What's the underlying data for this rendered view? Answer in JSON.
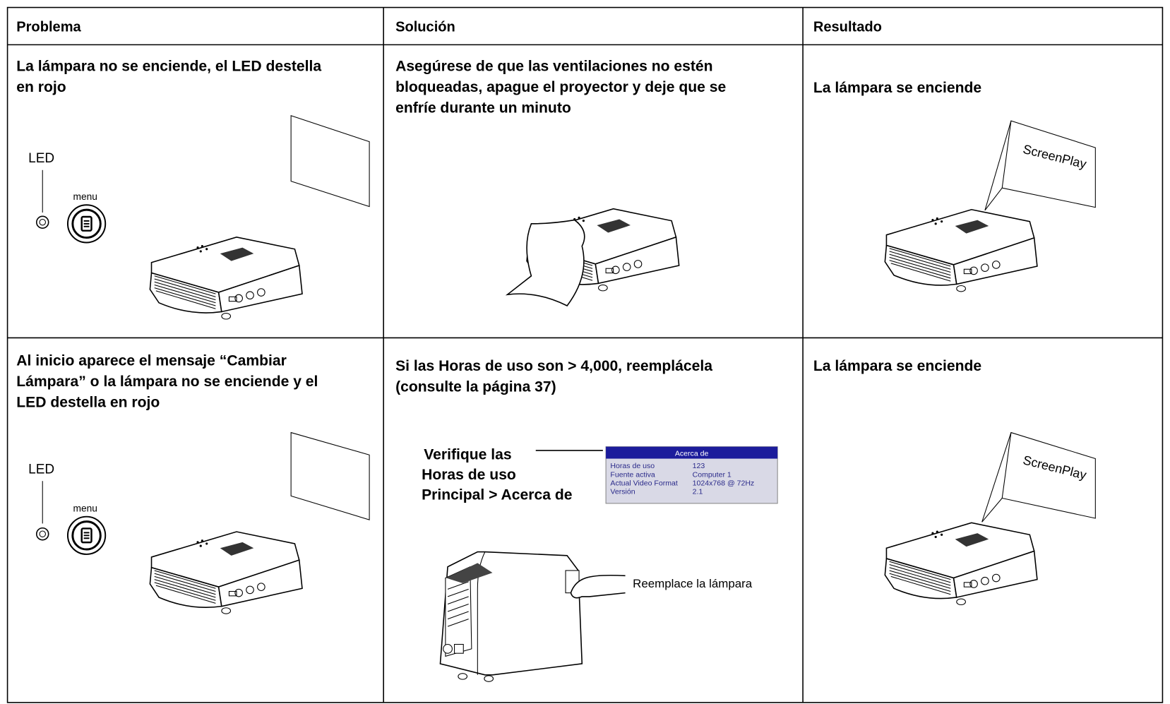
{
  "table": {
    "headers": [
      "Problema",
      "Solución",
      "Resultado"
    ],
    "rows": [
      {
        "problem": [
          "La lámpara no se enciende, el LED destella",
          "en rojo"
        ],
        "solution": [
          "Asegúrese de que las ventilaciones no estén",
          "bloqueadas, apague el proyector y deje que se",
          "enfríe durante un minuto"
        ],
        "result": [
          "La lámpara se enciende"
        ]
      },
      {
        "problem": [
          "Al inicio aparece el mensaje “Cambiar",
          "Lámpara” o la lámpara no se enciende y el",
          "LED destella en rojo"
        ],
        "solution": [
          "Si las Horas de uso son > 4,000, reemplácela",
          "(consulte la página 37)"
        ],
        "result": [
          "La lámpara se enciende"
        ]
      }
    ]
  },
  "illustrations": {
    "led_label": "LED",
    "menu_label": "menu",
    "screen_text": "ScreenPlay",
    "callout": [
      "Verifique las",
      "Horas de uso",
      "Principal > Acerca de"
    ],
    "osd": {
      "title": "Acerca de",
      "rows": [
        [
          "Horas de uso",
          "123"
        ],
        [
          "Fuente activa",
          "Computer 1"
        ],
        [
          "Actual Video Format",
          "1024x768 @ 72Hz"
        ],
        [
          "Versión",
          "2.1"
        ]
      ]
    },
    "replace_label": "Reemplace la lámpara"
  }
}
